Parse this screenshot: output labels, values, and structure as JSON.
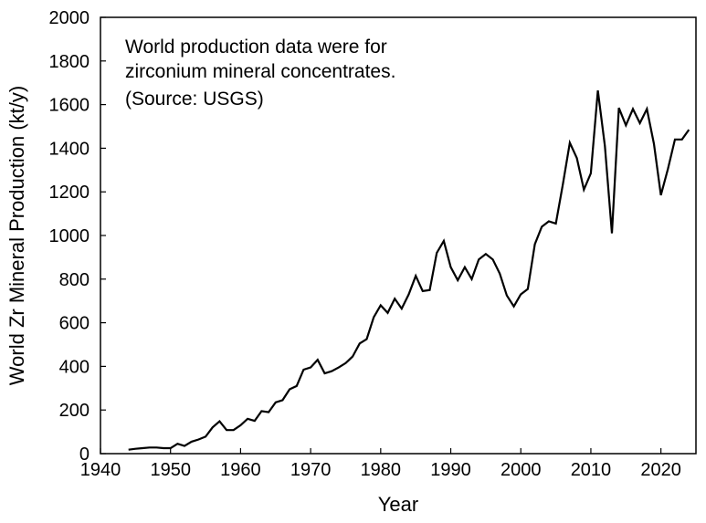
{
  "chart_data": {
    "type": "line",
    "title": "",
    "xlabel": "Year",
    "ylabel": "World Zr Mineral Production (kt/y)",
    "xlim": [
      1940,
      2025
    ],
    "ylim": [
      0,
      2000
    ],
    "xticks": [
      1940,
      1950,
      1960,
      1970,
      1980,
      1990,
      2000,
      2010,
      2020
    ],
    "yticks": [
      0,
      200,
      400,
      600,
      800,
      1000,
      1200,
      1400,
      1600,
      1800,
      2000
    ],
    "grid": false,
    "legend": "none",
    "annotation": [
      "World production data were for",
      "zirconium mineral concentrates.",
      "(Source: USGS)"
    ],
    "series": [
      {
        "x": [
          1944,
          1945,
          1946,
          1947,
          1948,
          1949,
          1950,
          1951,
          1952,
          1953,
          1954,
          1955,
          1956,
          1957,
          1958,
          1959,
          1960,
          1961,
          1962,
          1963,
          1964,
          1965,
          1966,
          1967,
          1968,
          1969,
          1970,
          1971,
          1972,
          1973,
          1974,
          1975,
          1976,
          1977,
          1978,
          1979,
          1980,
          1981,
          1982,
          1983,
          1984,
          1985,
          1986,
          1987,
          1988,
          1989,
          1990,
          1991,
          1992,
          1993,
          1994,
          1995,
          1996,
          1997,
          1998,
          1999,
          2000,
          2001,
          2002,
          2003,
          2004,
          2005,
          2006,
          2007,
          2008,
          2009,
          2010,
          2011,
          2012,
          2013,
          2014,
          2015,
          2016,
          2017,
          2018,
          2019,
          2020,
          2021,
          2022,
          2023,
          2024
        ],
        "values": [
          18,
          22,
          25,
          28,
          28,
          25,
          25,
          45,
          35,
          55,
          65,
          78,
          120,
          148,
          108,
          108,
          130,
          160,
          150,
          195,
          190,
          235,
          245,
          295,
          310,
          385,
          395,
          430,
          368,
          378,
          395,
          415,
          445,
          505,
          525,
          625,
          680,
          645,
          710,
          665,
          730,
          815,
          745,
          750,
          920,
          975,
          855,
          795,
          855,
          800,
          890,
          915,
          890,
          825,
          725,
          675,
          730,
          755,
          960,
          1040,
          1065,
          1055,
          1235,
          1425,
          1355,
          1210,
          1285,
          1665,
          1410,
          1010,
          1585,
          1505,
          1580,
          1515,
          1580,
          1420,
          1185,
          1305,
          1440,
          1440,
          1485
        ],
        "color": "#000000"
      }
    ]
  }
}
